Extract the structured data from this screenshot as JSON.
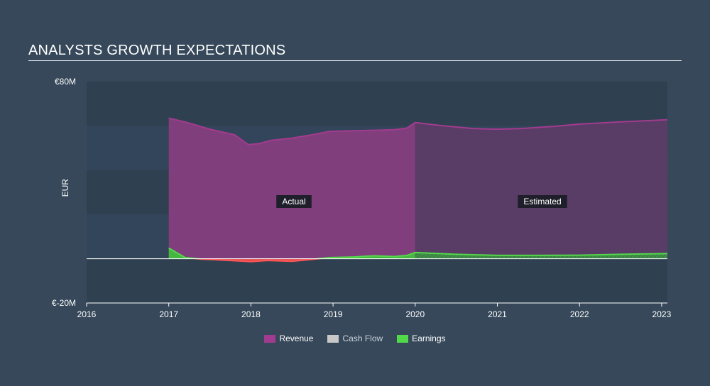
{
  "title": "ANALYSTS GROWTH EXPECTATIONS",
  "chart_data": {
    "type": "area",
    "ylabel": "EUR",
    "ylim": [
      -20,
      80
    ],
    "y_tick_labels": [
      "€80M",
      "€-20M"
    ],
    "x_tick_labels": [
      "2016",
      "2017",
      "2018",
      "2019",
      "2020",
      "2021",
      "2022",
      "2023"
    ],
    "xlim": [
      2016,
      2023.07
    ],
    "annotations": {
      "actual": "Actual",
      "estimated": "Estimated"
    },
    "forecast_start": 2020,
    "series": [
      {
        "name": "Revenue",
        "color": "#a23b8f",
        "x": [
          2017.0,
          2017.2,
          2017.5,
          2017.8,
          2017.97,
          2018.1,
          2018.25,
          2018.5,
          2018.75,
          2018.95,
          2019.25,
          2019.5,
          2019.75,
          2019.9,
          2020.0,
          2020.3,
          2020.7,
          2021.0,
          2021.3,
          2021.7,
          2022.0,
          2022.5,
          2023.07
        ],
        "values": [
          63.5,
          61.8,
          58.5,
          56.0,
          51.5,
          52.0,
          53.5,
          54.5,
          56.0,
          57.5,
          57.8,
          58.0,
          58.3,
          59.0,
          61.5,
          60.2,
          58.8,
          58.5,
          58.8,
          59.8,
          60.8,
          61.8,
          62.8
        ]
      },
      {
        "name": "Cash Flow",
        "color": "#c8c8c8",
        "x": [],
        "values": []
      },
      {
        "name": "Earnings",
        "color": "#53d84a",
        "x": [
          2017.0,
          2017.2,
          2017.4,
          2017.6,
          2017.85,
          2018.0,
          2018.2,
          2018.5,
          2018.75,
          2018.95,
          2019.25,
          2019.5,
          2019.75,
          2019.9,
          2020.0,
          2020.5,
          2021.0,
          2021.5,
          2022.0,
          2022.5,
          2023.07
        ],
        "values": [
          4.8,
          0.5,
          -0.2,
          -0.5,
          -1.0,
          -1.3,
          -0.8,
          -1.2,
          -0.3,
          0.5,
          0.8,
          1.3,
          1.0,
          1.5,
          2.8,
          2.0,
          1.5,
          1.5,
          1.6,
          2.0,
          2.3
        ]
      }
    ]
  }
}
